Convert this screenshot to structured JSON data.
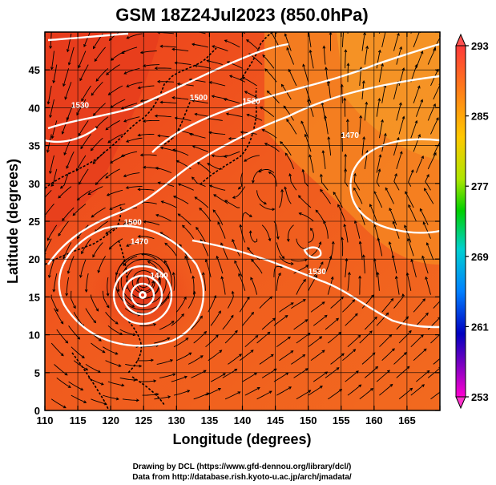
{
  "title": "GSM 18Z24Jul2023 (850.0hPa)",
  "x_axis_label": "Longitude (degrees)",
  "y_axis_label": "Latitude  (degrees)",
  "credits": [
    "Drawing by DCL (https://www.gfd-dennou.org/library/dcl/)",
    "Data from http://database.rish.kyoto-u.ac.jp/arch/jmadata/"
  ],
  "x_ticks": [
    "110",
    "115",
    "120",
    "125",
    "130",
    "135",
    "140",
    "145",
    "150",
    "155",
    "160",
    "165"
  ],
  "y_ticks": [
    "0",
    "5",
    "10",
    "15",
    "20",
    "25",
    "30",
    "35",
    "40",
    "45"
  ],
  "colorbar_ticks": [
    "293",
    "285",
    "277",
    "269",
    "261",
    "253"
  ],
  "contour_labels": [
    "1440",
    "1470",
    "1500",
    "1520",
    "1530",
    "1470",
    "1500",
    "1530"
  ],
  "colors": {
    "field_warm": "#ee3a1a",
    "field_hot": "#e8361a",
    "field_mild": "#f57d1f",
    "field_cool": "#f9a62a",
    "contour": "#ffffff",
    "colorbar_stops": [
      "#e0e000",
      "#ff0000",
      "#ff8800",
      "#ffff00",
      "#00ff00",
      "#00ffff",
      "#0066ff",
      "#000088",
      "#ff00ff"
    ]
  },
  "chart_data": {
    "type": "map",
    "projection": "equirectangular",
    "xlim": [
      110,
      170
    ],
    "ylim": [
      0,
      50
    ],
    "x_unit": "degrees longitude",
    "y_unit": "degrees latitude",
    "colorbar": {
      "min": 253,
      "max": 293,
      "ticks": [
        293,
        285,
        277,
        269,
        261,
        253
      ]
    },
    "features": [
      {
        "type": "typhoon_center",
        "lon": 125,
        "lat": 17
      },
      {
        "type": "cyclonic_eddy",
        "lon": 144,
        "lat": 30
      },
      {
        "type": "cyclonic_eddy",
        "lon": 150,
        "lat": 23
      }
    ],
    "contours": [
      {
        "label": "1440",
        "lon": 126,
        "lat": 17.5
      },
      {
        "label": "1470",
        "lon": 123,
        "lat": 22
      },
      {
        "label": "1500",
        "lon": 122,
        "lat": 24.5
      },
      {
        "label": "1520",
        "lon": 140,
        "lat": 40.5
      },
      {
        "label": "1530",
        "lon": 150,
        "lat": 18
      },
      {
        "label": "1470",
        "lon": 155,
        "lat": 36
      },
      {
        "label": "1500",
        "lon": 132,
        "lat": 41
      },
      {
        "label": "1530",
        "lon": 114,
        "lat": 40
      }
    ]
  }
}
